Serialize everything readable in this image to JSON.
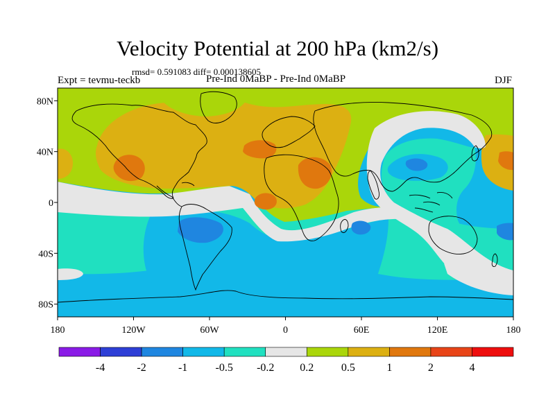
{
  "header": {
    "title": "Velocity Potential at 200 hPa (km2/s)",
    "stats": "rmsd= 0.591083 diff= 0.000138605",
    "experiment": "Expt = tevmu-teckb",
    "comparison": "Pre-Ind 0MaBP - Pre-Ind 0MaBP",
    "season": "DJF"
  },
  "map": {
    "lon_range": [
      -180,
      180
    ],
    "lat_range": [
      -90,
      90
    ],
    "lat_ticks": [
      {
        "value": 80,
        "label": "80N"
      },
      {
        "value": 40,
        "label": "40N"
      },
      {
        "value": 0,
        "label": "0"
      },
      {
        "value": -40,
        "label": "40S"
      },
      {
        "value": -80,
        "label": "80S"
      }
    ],
    "lon_ticks": [
      {
        "value": -180,
        "label": "180"
      },
      {
        "value": -120,
        "label": "120W"
      },
      {
        "value": -60,
        "label": "60W"
      },
      {
        "value": 0,
        "label": "0"
      },
      {
        "value": 60,
        "label": "60E"
      },
      {
        "value": 120,
        "label": "120E"
      },
      {
        "value": 180,
        "label": "180"
      }
    ]
  },
  "colorbar": {
    "colors": [
      "#8a1be6",
      "#2e3fd6",
      "#1f86e0",
      "#12b8e8",
      "#20e0c0",
      "#e6e6e6",
      "#aad60a",
      "#dcb012",
      "#e0780e",
      "#e84418",
      "#ee0e0e"
    ],
    "labels": [
      "-4",
      "-2",
      "-1",
      "-0.5",
      "-0.2",
      "0.2",
      "0.5",
      "1",
      "2",
      "4"
    ]
  },
  "colors": {
    "ocean_blue": "#12b8e8",
    "teal": "#20e0c0",
    "neutral": "#e6e6e6",
    "lime": "#aad60a",
    "gold": "#dcb012",
    "orange": "#e0780e",
    "dark_blue": "#1f86e0",
    "coastline": "#000000"
  }
}
